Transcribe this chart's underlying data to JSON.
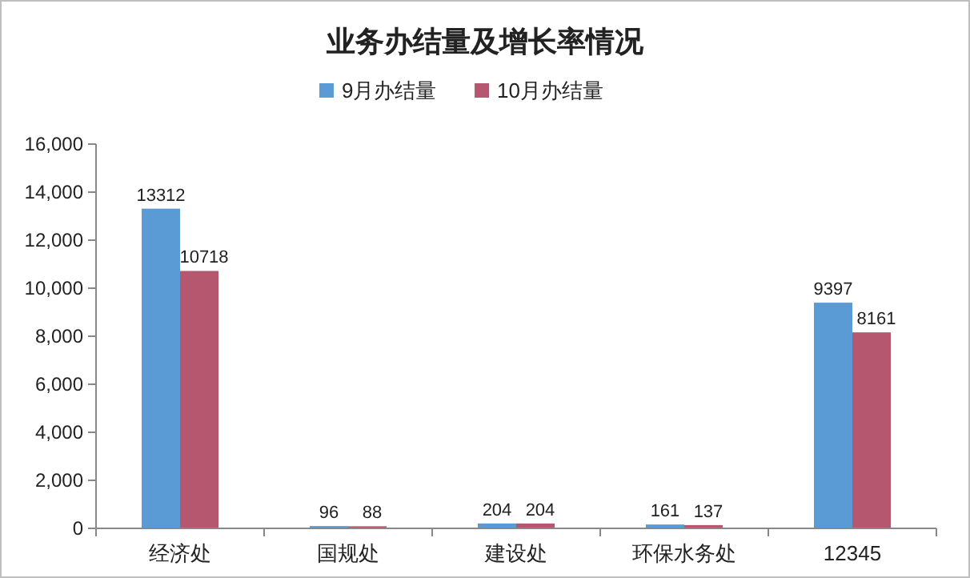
{
  "chart_data": {
    "type": "bar",
    "title": "业务办结量及增长率情况",
    "categories": [
      "经济处",
      "国规处",
      "建设处",
      "环保水务处",
      "12345"
    ],
    "series": [
      {
        "name": "9月办结量",
        "color": "#5b9bd5",
        "values": [
          13312,
          96,
          204,
          161,
          9397
        ]
      },
      {
        "name": "10月办结量",
        "color": "#b5586f",
        "values": [
          10718,
          88,
          204,
          137,
          8161
        ]
      }
    ],
    "ylim": [
      0,
      16000
    ],
    "yticks": [
      {
        "value": 0,
        "label": "0"
      },
      {
        "value": 2000,
        "label": "2,000"
      },
      {
        "value": 4000,
        "label": "4,000"
      },
      {
        "value": 6000,
        "label": "6,000"
      },
      {
        "value": 8000,
        "label": "8,000"
      },
      {
        "value": 10000,
        "label": "10,000"
      },
      {
        "value": 12000,
        "label": "12,000"
      },
      {
        "value": 14000,
        "label": "14,000"
      },
      {
        "value": 16000,
        "label": "16,000"
      }
    ],
    "data_labels": true,
    "legend": "top",
    "grid": false
  }
}
